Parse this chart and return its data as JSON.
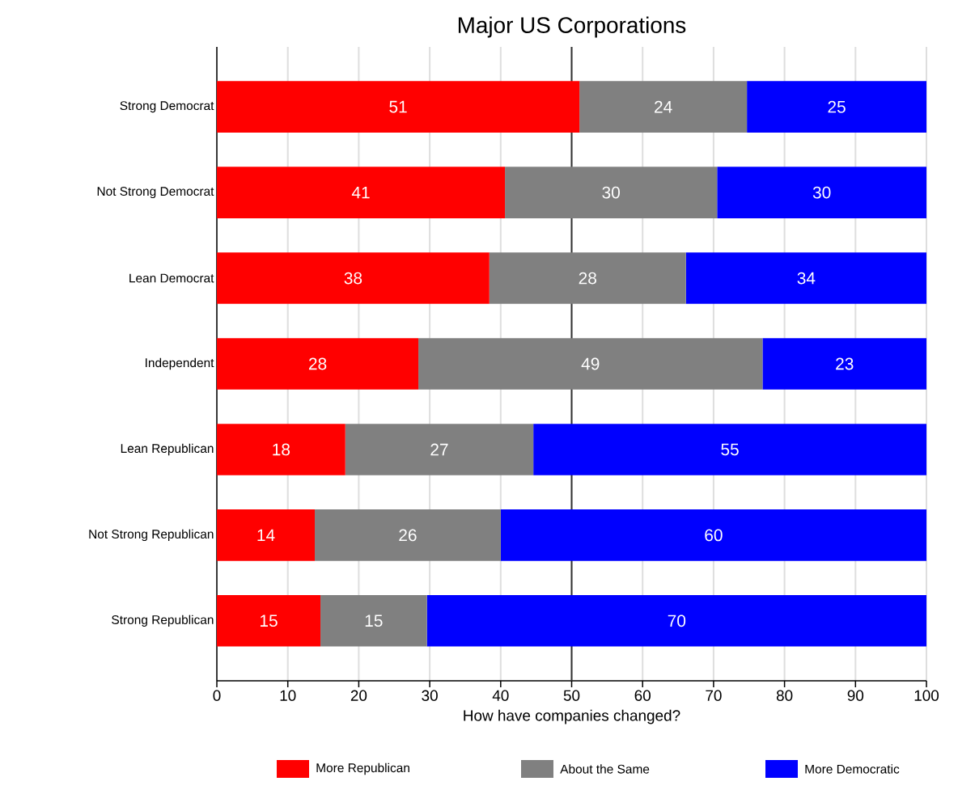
{
  "chart_data": {
    "type": "bar",
    "orientation": "horizontal",
    "stacked": true,
    "title": "Major US Corporations",
    "xlabel": "How have companies changed?",
    "categories": [
      "Strong Democrat",
      "Not Strong Democrat",
      "Lean Democrat",
      "Independent",
      "Lean Republican",
      "Not Strong Republican",
      "Strong Republican"
    ],
    "series": [
      {
        "name": "More Republican",
        "color": "#ff0000",
        "values": [
          51.1,
          40.6,
          38.4,
          28.4,
          18.1,
          13.8,
          14.6
        ],
        "value_labels": [
          "51",
          "41",
          "38",
          "28",
          "18",
          "14",
          "15"
        ]
      },
      {
        "name": "About the Same",
        "color": "#808080",
        "values": [
          23.6,
          29.9,
          27.7,
          48.5,
          26.5,
          26.2,
          15.0
        ],
        "value_labels": [
          "24",
          "30",
          "28",
          "49",
          "27",
          "26",
          "15"
        ]
      },
      {
        "name": "More Democratic",
        "color": "#0000ff",
        "values": [
          25.3,
          29.5,
          33.9,
          23.1,
          55.4,
          60.0,
          70.4
        ],
        "value_labels": [
          "25",
          "30",
          "34",
          "23",
          "55",
          "60",
          "70"
        ]
      }
    ],
    "xlim": [
      0,
      100
    ],
    "xticks": [
      0,
      10,
      20,
      30,
      40,
      50,
      60,
      70,
      80,
      90,
      100
    ],
    "ref_lines": [
      {
        "axis": "x",
        "value": 50,
        "color": "#333333"
      }
    ],
    "grid": "x",
    "legend": "bottom"
  }
}
